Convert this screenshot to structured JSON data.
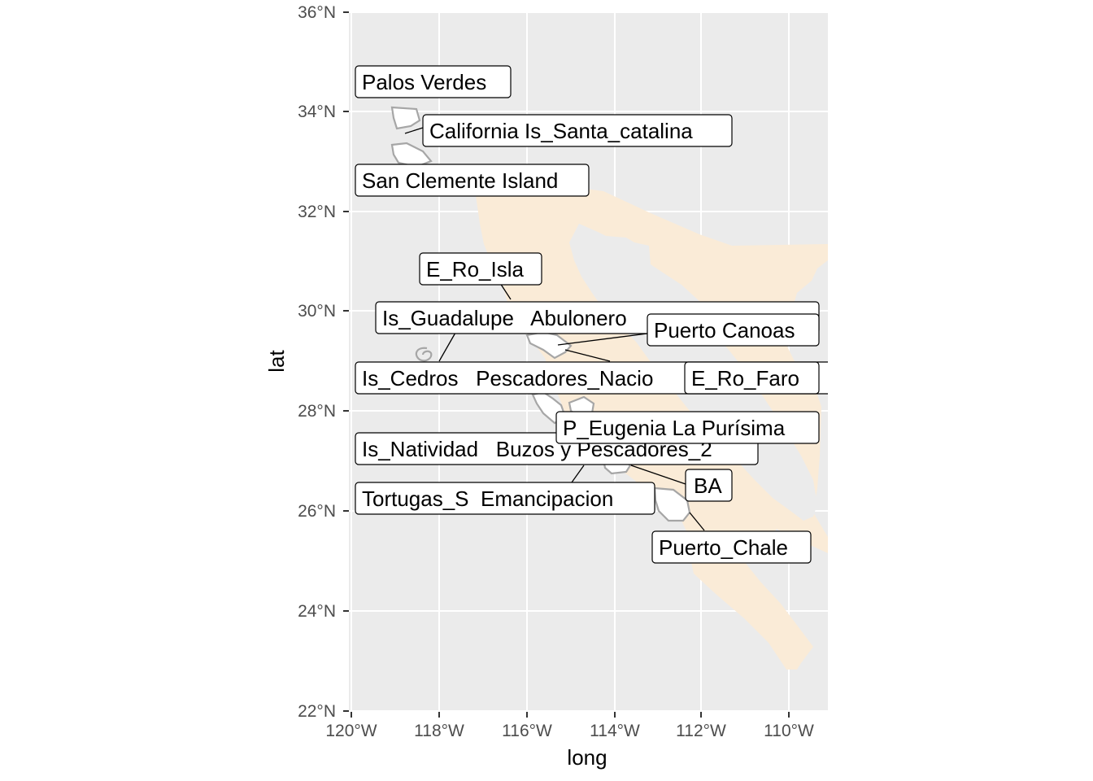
{
  "colors": {
    "panel_background": "#ebebeb",
    "grid": "#ffffff",
    "land_fill": "#faebd7",
    "site_polygon_fill": "#ffffff",
    "site_polygon_stroke": "#a6a6a6",
    "label_border": "#000000",
    "axis_text": "#4d4d4d"
  },
  "axes": {
    "x_title": "long",
    "y_title": "lat",
    "x_ticks": [
      "120°W",
      "118°W",
      "116°W",
      "114°W",
      "112°W",
      "110°W"
    ],
    "y_ticks": [
      "22°N",
      "24°N",
      "26°N",
      "28°N",
      "30°N",
      "32°N",
      "34°N",
      "36°N"
    ],
    "x_range": [
      -120,
      -109
    ],
    "y_range": [
      22,
      36
    ]
  },
  "labels": [
    "Palos Verdes",
    "California Is_Santa_catalina",
    "San Clemente Island",
    "E_Ro_Isla",
    "Is_Guadalupe   Abulonero",
    "Puerto Canoas",
    "Is_Cedros   Pescadores_Nacio",
    "E_Ro_Faro",
    "P_Eugenia La Purísima",
    "Is_Natividad   Buzos y Pescadores_2",
    "BA",
    "Tortugas_S  Emancipacion",
    "Puerto_Chale"
  ]
}
